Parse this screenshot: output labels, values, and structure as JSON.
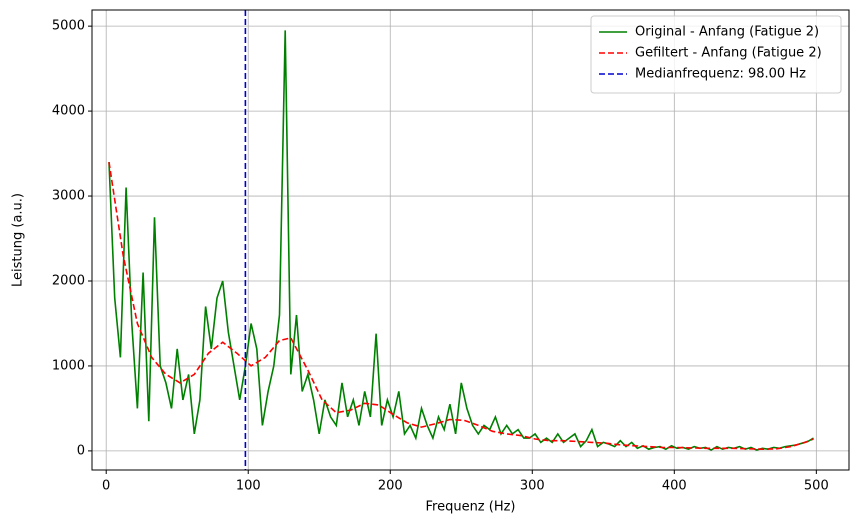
{
  "chart_data": {
    "type": "line",
    "xlabel": "Frequenz (Hz)",
    "ylabel": "Leistung (a.u.)",
    "xlim": [
      -10,
      523
    ],
    "ylim": [
      -225,
      5190
    ],
    "xticks": [
      0,
      100,
      200,
      300,
      400,
      500
    ],
    "yticks": [
      0,
      1000,
      2000,
      3000,
      4000,
      5000
    ],
    "grid": true,
    "legend": "upper right",
    "series": [
      {
        "name": "Original - Anfang (Fatigue 2)",
        "color": "#008000",
        "style": "solid",
        "x": [
          2,
          6,
          10,
          14,
          18,
          22,
          26,
          30,
          34,
          38,
          42,
          46,
          50,
          54,
          58,
          62,
          66,
          70,
          74,
          78,
          82,
          86,
          90,
          94,
          98,
          102,
          106,
          110,
          114,
          118,
          122,
          126,
          130,
          134,
          138,
          142,
          146,
          150,
          154,
          158,
          162,
          166,
          170,
          174,
          178,
          182,
          186,
          190,
          194,
          198,
          202,
          206,
          210,
          214,
          218,
          222,
          226,
          230,
          234,
          238,
          242,
          246,
          250,
          254,
          258,
          262,
          266,
          270,
          274,
          278,
          282,
          286,
          290,
          294,
          298,
          302,
          306,
          310,
          314,
          318,
          322,
          326,
          330,
          334,
          338,
          342,
          346,
          350,
          354,
          358,
          362,
          366,
          370,
          374,
          378,
          382,
          386,
          390,
          394,
          398,
          402,
          406,
          410,
          414,
          418,
          422,
          426,
          430,
          434,
          438,
          442,
          446,
          450,
          454,
          458,
          462,
          466,
          470,
          474,
          478,
          482,
          486,
          490,
          494,
          498
        ],
        "values": [
          3400,
          1800,
          1100,
          3100,
          1500,
          500,
          2100,
          350,
          2750,
          1000,
          800,
          500,
          1200,
          600,
          900,
          200,
          600,
          1700,
          1200,
          1800,
          2000,
          1400,
          1000,
          600,
          1000,
          1500,
          1200,
          300,
          700,
          1000,
          1600,
          4950,
          900,
          1600,
          700,
          900,
          600,
          200,
          600,
          400,
          300,
          800,
          400,
          600,
          300,
          700,
          400,
          1380,
          300,
          600,
          400,
          700,
          200,
          300,
          150,
          500,
          300,
          150,
          400,
          250,
          550,
          200,
          800,
          500,
          300,
          200,
          300,
          250,
          400,
          200,
          300,
          200,
          250,
          150,
          150,
          200,
          100,
          150,
          100,
          200,
          100,
          150,
          200,
          50,
          120,
          250,
          50,
          100,
          80,
          50,
          120,
          50,
          100,
          30,
          60,
          20,
          40,
          50,
          20,
          60,
          30,
          40,
          20,
          50,
          30,
          40,
          10,
          50,
          20,
          40,
          30,
          50,
          20,
          40,
          10,
          30,
          20,
          40,
          30,
          50,
          60,
          70,
          90,
          110,
          150
        ]
      },
      {
        "name": "Gefiltert - Anfang (Fatigue 2)",
        "color": "#ff0000",
        "style": "dashed",
        "x": [
          2,
          12,
          22,
          32,
          42,
          52,
          62,
          72,
          82,
          92,
          102,
          112,
          122,
          130,
          142,
          152,
          162,
          172,
          182,
          192,
          202,
          212,
          222,
          232,
          242,
          252,
          262,
          272,
          282,
          292,
          302,
          312,
          322,
          332,
          342,
          352,
          362,
          372,
          382,
          392,
          402,
          412,
          422,
          432,
          442,
          452,
          462,
          472,
          482,
          492,
          498
        ],
        "values": [
          3400,
          2300,
          1500,
          1100,
          900,
          800,
          900,
          1150,
          1280,
          1150,
          1000,
          1100,
          1300,
          1330,
          950,
          600,
          450,
          480,
          560,
          540,
          430,
          330,
          280,
          320,
          370,
          360,
          300,
          230,
          200,
          180,
          140,
          120,
          120,
          110,
          100,
          90,
          70,
          60,
          50,
          40,
          40,
          35,
          30,
          30,
          30,
          25,
          20,
          25,
          50,
          100,
          140
        ]
      }
    ],
    "vlines": [
      {
        "name": "Medianfrequenz: 98.00 Hz",
        "color": "#0000cd",
        "style": "dashed",
        "x": 98
      }
    ]
  }
}
